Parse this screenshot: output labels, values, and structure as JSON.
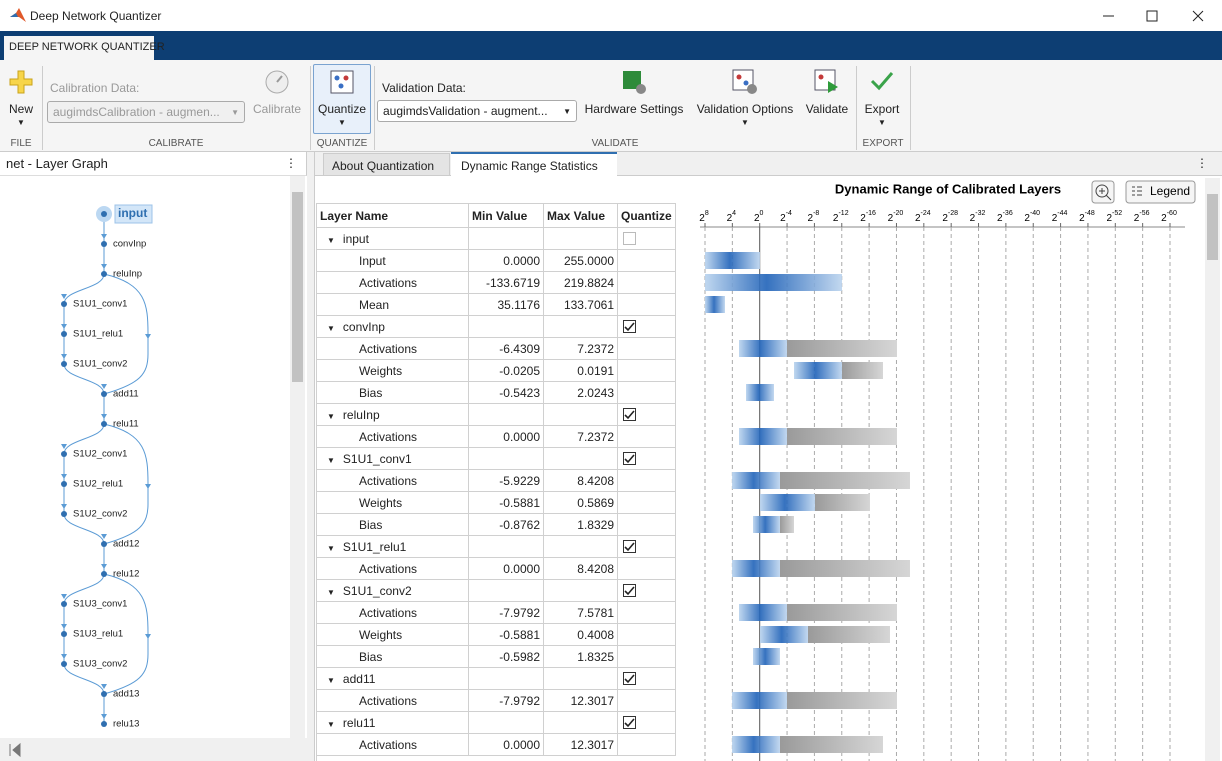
{
  "window": {
    "title": "Deep Network Quantizer"
  },
  "toolstrip": {
    "tab": "DEEP NETWORK QUANTIZER",
    "file": {
      "new": "New",
      "label": "FILE"
    },
    "calibrate": {
      "data_label": "Calibration Data:",
      "data_value": "augimdsCalibration - augmen...",
      "button": "Calibrate",
      "label": "CALIBRATE"
    },
    "quantize": {
      "button": "Quantize",
      "label": "QUANTIZE"
    },
    "validate": {
      "data_label": "Validation Data:",
      "data_value": "augimdsValidation - augment...",
      "hardware": "Hardware Settings",
      "options": "Validation Options",
      "button": "Validate",
      "label": "VALIDATE"
    },
    "export": {
      "button": "Export",
      "label": "EXPORT"
    }
  },
  "layer_graph": {
    "title": "net - Layer Graph",
    "nodes": [
      "input",
      "convInp",
      "reluInp",
      "S1U1_conv1",
      "S1U1_relu1",
      "S1U1_conv2",
      "add11",
      "relu11",
      "S1U2_conv1",
      "S1U2_relu1",
      "S1U2_conv2",
      "add12",
      "relu12",
      "S1U3_conv1",
      "S1U3_relu1",
      "S1U3_conv2",
      "add13",
      "relu13"
    ]
  },
  "tabs": [
    "About Quantization",
    "Dynamic Range Statistics"
  ],
  "table": {
    "columns": [
      "Layer Name",
      "Min Value",
      "Max Value",
      "Quantize"
    ],
    "rows": [
      {
        "name": "input",
        "quantize": false
      },
      {
        "name": "Input",
        "min": "0.0000",
        "max": "255.0000"
      },
      {
        "name": "Activations",
        "min": "-133.6719",
        "max": "219.8824"
      },
      {
        "name": "Mean",
        "min": "35.1176",
        "max": "133.7061"
      },
      {
        "name": "convInp",
        "quantize": true
      },
      {
        "name": "Activations",
        "min": "-6.4309",
        "max": "7.2372"
      },
      {
        "name": "Weights",
        "min": "-0.0205",
        "max": "0.0191"
      },
      {
        "name": "Bias",
        "min": "-0.5423",
        "max": "2.0243"
      },
      {
        "name": "reluInp",
        "quantize": true
      },
      {
        "name": "Activations",
        "min": "0.0000",
        "max": "7.2372"
      },
      {
        "name": "S1U1_conv1",
        "quantize": true
      },
      {
        "name": "Activations",
        "min": "-5.9229",
        "max": "8.4208"
      },
      {
        "name": "Weights",
        "min": "-0.5881",
        "max": "0.5869"
      },
      {
        "name": "Bias",
        "min": "-0.8762",
        "max": "1.8329"
      },
      {
        "name": "S1U1_relu1",
        "quantize": true
      },
      {
        "name": "Activations",
        "min": "0.0000",
        "max": "8.4208"
      },
      {
        "name": "S1U1_conv2",
        "quantize": true
      },
      {
        "name": "Activations",
        "min": "-7.9792",
        "max": "7.5781"
      },
      {
        "name": "Weights",
        "min": "-0.5881",
        "max": "0.4008"
      },
      {
        "name": "Bias",
        "min": "-0.5982",
        "max": "1.8325"
      },
      {
        "name": "add11",
        "quantize": true
      },
      {
        "name": "Activations",
        "min": "-7.9792",
        "max": "12.3017"
      },
      {
        "name": "relu11",
        "quantize": true
      },
      {
        "name": "Activations",
        "min": "0.0000",
        "max": "12.3017"
      }
    ]
  },
  "histogram": {
    "title": "Dynamic Range of Calibrated Layers",
    "legend": "Legend",
    "axis_base": "2",
    "axis_exponents": [
      "8",
      "4",
      "0",
      "-4",
      "-8",
      "-12",
      "-16",
      "-20",
      "-24",
      "-28",
      "-32",
      "-36",
      "-40",
      "-44",
      "-48",
      "-52",
      "-56",
      "-60"
    ]
  }
}
